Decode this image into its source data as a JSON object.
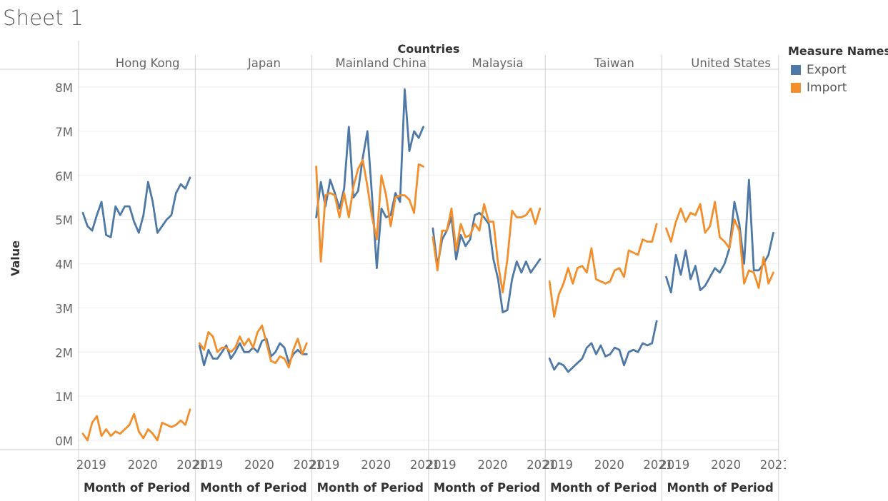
{
  "sheet": {
    "title": "Sheet 1"
  },
  "legend": {
    "title": "Measure Names",
    "items": [
      {
        "label": "Export",
        "color": "#4e79a7"
      },
      {
        "label": "Import",
        "color": "#f28e2b"
      }
    ]
  },
  "chart_data": {
    "type": "line",
    "title": "",
    "column_header": "Countries",
    "ylabel": "Value",
    "xlabel": "Month of Period",
    "x_ticks": [
      "2019",
      "2020",
      "2021"
    ],
    "y_ticks": [
      0,
      1,
      2,
      3,
      4,
      5,
      6,
      7,
      8
    ],
    "y_tick_labels": [
      "0M",
      "1M",
      "2M",
      "3M",
      "4M",
      "5M",
      "6M",
      "7M",
      "8M"
    ],
    "ylim": [
      0,
      8.2
    ],
    "y_unit": "M",
    "grid": true,
    "legend_position": "right",
    "x_range": [
      "2019-01",
      "2021-06"
    ],
    "months": [
      "2019-01",
      "2019-02",
      "2019-03",
      "2019-04",
      "2019-05",
      "2019-06",
      "2019-07",
      "2019-08",
      "2019-09",
      "2019-10",
      "2019-11",
      "2019-12",
      "2020-01",
      "2020-02",
      "2020-03",
      "2020-04",
      "2020-05",
      "2020-06",
      "2020-07",
      "2020-08",
      "2020-09",
      "2020-10",
      "2020-11",
      "2020-12",
      "2021-01",
      "2021-02",
      "2021-03",
      "2021-04",
      "2021-05",
      "2021-06"
    ],
    "panels": [
      {
        "country": "Hong Kong",
        "series": [
          {
            "name": "Export",
            "values": [
              5.15,
              4.85,
              4.75,
              5.1,
              5.4,
              4.65,
              4.6,
              5.3,
              5.1,
              5.3,
              5.3,
              4.95,
              4.7,
              5.1,
              5.85,
              5.4,
              4.7,
              4.85,
              5.0,
              5.1,
              5.6,
              5.8,
              5.7,
              5.95
            ]
          },
          {
            "name": "Import",
            "values": [
              0.15,
              0.0,
              0.4,
              0.55,
              0.1,
              0.25,
              0.1,
              0.2,
              0.15,
              0.25,
              0.35,
              0.6,
              0.2,
              0.05,
              0.25,
              0.15,
              0.0,
              0.4,
              0.35,
              0.3,
              0.35,
              0.45,
              0.35,
              0.7
            ]
          }
        ]
      },
      {
        "country": "Japan",
        "series": [
          {
            "name": "Export",
            "values": [
              2.15,
              1.7,
              2.05,
              1.85,
              1.85,
              2.0,
              2.15,
              1.85,
              2.0,
              2.2,
              2.0,
              2.0,
              2.1,
              2.0,
              2.25,
              2.3,
              1.9,
              2.0,
              2.2,
              2.1,
              1.75,
              1.95,
              2.05,
              1.95,
              1.95
            ]
          },
          {
            "name": "Import",
            "values": [
              2.2,
              2.05,
              2.45,
              2.35,
              2.0,
              2.1,
              2.1,
              2.0,
              2.1,
              2.35,
              2.15,
              2.3,
              2.1,
              2.45,
              2.6,
              2.2,
              1.8,
              1.75,
              1.9,
              1.85,
              1.65,
              2.05,
              2.3,
              1.95,
              2.2
            ]
          }
        ]
      },
      {
        "country": "Mainland China",
        "series": [
          {
            "name": "Export",
            "values": [
              5.05,
              5.85,
              5.3,
              5.9,
              5.6,
              5.25,
              5.7,
              7.1,
              5.5,
              5.65,
              6.4,
              7.0,
              5.5,
              3.9,
              5.25,
              5.05,
              5.1,
              5.6,
              5.4,
              7.95,
              6.55,
              7.0,
              6.85,
              7.1
            ]
          },
          {
            "name": "Import",
            "values": [
              6.2,
              4.05,
              5.55,
              5.6,
              5.55,
              5.05,
              5.6,
              5.05,
              5.75,
              6.15,
              6.35,
              5.75,
              5.05,
              4.55,
              6.0,
              5.55,
              4.85,
              5.5,
              5.55,
              5.55,
              5.45,
              5.15,
              6.25,
              6.2
            ]
          }
        ]
      },
      {
        "country": "Malaysia",
        "series": [
          {
            "name": "Export",
            "values": [
              4.8,
              3.95,
              4.55,
              4.75,
              5.05,
              4.1,
              4.65,
              4.4,
              4.55,
              5.1,
              5.15,
              5.05,
              4.9,
              4.1,
              3.65,
              2.9,
              2.95,
              3.65,
              4.05,
              3.8,
              4.05,
              3.8,
              3.95,
              4.1
            ]
          },
          {
            "name": "Import",
            "values": [
              4.6,
              3.85,
              4.75,
              4.75,
              5.25,
              4.3,
              4.9,
              4.6,
              4.65,
              4.9,
              4.75,
              5.35,
              4.95,
              4.95,
              4.0,
              3.35,
              4.1,
              5.2,
              5.05,
              5.05,
              5.1,
              5.25,
              4.9,
              5.25
            ]
          }
        ]
      },
      {
        "country": "Taiwan",
        "series": [
          {
            "name": "Export",
            "values": [
              1.85,
              1.6,
              1.75,
              1.7,
              1.55,
              1.65,
              1.75,
              1.85,
              2.1,
              2.2,
              1.95,
              2.15,
              1.9,
              1.95,
              2.1,
              2.05,
              1.7,
              2.0,
              2.05,
              2.0,
              2.2,
              2.15,
              2.2,
              2.7
            ]
          },
          {
            "name": "Import",
            "values": [
              3.6,
              2.8,
              3.3,
              3.55,
              3.9,
              3.55,
              3.9,
              3.95,
              3.8,
              4.35,
              3.65,
              3.6,
              3.55,
              3.6,
              3.85,
              3.9,
              3.7,
              4.3,
              4.25,
              4.2,
              4.55,
              4.5,
              4.5,
              4.9
            ]
          }
        ]
      },
      {
        "country": "United States",
        "series": [
          {
            "name": "Export",
            "values": [
              3.7,
              3.35,
              4.2,
              3.75,
              4.3,
              3.65,
              3.95,
              3.4,
              3.5,
              3.7,
              3.9,
              3.8,
              4.0,
              4.35,
              5.4,
              4.9,
              4.0,
              5.9,
              3.85,
              3.85,
              4.0,
              4.2,
              4.7
            ]
          },
          {
            "name": "Import",
            "values": [
              4.8,
              4.5,
              4.95,
              5.25,
              4.95,
              5.15,
              5.1,
              5.35,
              4.7,
              4.85,
              5.4,
              4.6,
              4.5,
              4.35,
              5.0,
              4.75,
              3.55,
              3.85,
              3.8,
              3.45,
              4.15,
              3.55,
              3.8
            ]
          }
        ]
      }
    ]
  }
}
